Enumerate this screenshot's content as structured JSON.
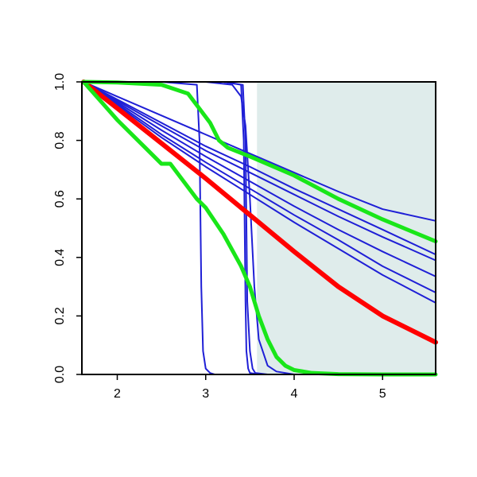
{
  "chart_data": {
    "type": "line",
    "title": "",
    "xlabel": "",
    "ylabel": "",
    "xlim": [
      1.6,
      5.6
    ],
    "ylim": [
      0,
      1
    ],
    "x_ticks": [
      2,
      3,
      4,
      5
    ],
    "x_tick_labels": [
      "2",
      "3",
      "4",
      "5"
    ],
    "y_ticks": [
      0,
      0.2,
      0.4,
      0.6,
      0.8,
      1
    ],
    "y_tick_labels": [
      "0.0",
      "0.2",
      "0.4",
      "0.6",
      "0.8",
      "1.0"
    ],
    "grid": false,
    "shaded_region": {
      "x_start": 3.58,
      "x_end": 5.6,
      "color": "#dfeceb"
    },
    "colors": {
      "blue": "#1f1fd6",
      "red": "#ff0000",
      "green": "#19e619",
      "axis": "#000000"
    },
    "series": [
      {
        "color": "blue",
        "width": 2,
        "x": [
          1.62,
          2.0,
          2.5,
          3.0,
          3.5,
          4.0,
          4.5,
          5.0,
          5.6
        ],
        "y": [
          1.0,
          0.95,
          0.885,
          0.82,
          0.755,
          0.69,
          0.625,
          0.565,
          0.525
        ]
      },
      {
        "color": "blue",
        "width": 2,
        "x": [
          1.62,
          2.0,
          2.5,
          3.0,
          3.5,
          4.0,
          4.5,
          5.0,
          5.6
        ],
        "y": [
          1.0,
          0.94,
          0.86,
          0.78,
          0.71,
          0.635,
          0.565,
          0.495,
          0.41
        ]
      },
      {
        "color": "blue",
        "width": 2,
        "x": [
          1.62,
          2.0,
          2.5,
          3.0,
          3.5,
          4.0,
          4.5,
          5.0,
          5.6
        ],
        "y": [
          1.0,
          0.935,
          0.85,
          0.765,
          0.69,
          0.615,
          0.54,
          0.47,
          0.39
        ]
      },
      {
        "color": "blue",
        "width": 2,
        "x": [
          1.62,
          2.0,
          2.5,
          3.0,
          3.5,
          4.0,
          4.5,
          5.0,
          5.6
        ],
        "y": [
          1.0,
          0.93,
          0.835,
          0.745,
          0.66,
          0.575,
          0.495,
          0.42,
          0.335
        ]
      },
      {
        "color": "blue",
        "width": 2,
        "x": [
          1.62,
          2.0,
          2.5,
          3.0,
          3.5,
          4.0,
          4.5,
          5.0,
          5.6
        ],
        "y": [
          1.0,
          0.925,
          0.82,
          0.725,
          0.635,
          0.545,
          0.46,
          0.37,
          0.28
        ]
      },
      {
        "color": "blue",
        "width": 2,
        "x": [
          1.62,
          2.0,
          2.5,
          3.0,
          3.5,
          4.0,
          4.5,
          5.0,
          5.6
        ],
        "y": [
          1.0,
          0.92,
          0.81,
          0.71,
          0.615,
          0.52,
          0.43,
          0.34,
          0.245
        ]
      },
      {
        "color": "blue",
        "width": 2,
        "x": [
          1.62,
          2.5,
          2.9,
          2.93,
          2.95,
          2.97,
          3.0,
          3.05,
          3.1
        ],
        "y": [
          1.0,
          1.0,
          0.99,
          0.8,
          0.3,
          0.08,
          0.02,
          0.005,
          0.0
        ]
      },
      {
        "color": "blue",
        "width": 2,
        "x": [
          1.62,
          3.2,
          3.4,
          3.43,
          3.45,
          3.46,
          3.48,
          3.5,
          3.6
        ],
        "y": [
          1.0,
          1.0,
          0.99,
          0.8,
          0.25,
          0.08,
          0.02,
          0.005,
          0.0
        ]
      },
      {
        "color": "blue",
        "width": 2,
        "x": [
          1.62,
          3.2,
          3.42,
          3.45,
          3.47,
          3.5,
          3.53,
          3.56,
          3.7
        ],
        "y": [
          1.0,
          1.0,
          0.99,
          0.8,
          0.25,
          0.08,
          0.02,
          0.005,
          0.0
        ]
      },
      {
        "color": "blue",
        "width": 2,
        "x": [
          1.62,
          3.0,
          3.3,
          3.4,
          3.45,
          3.5,
          3.55,
          3.6,
          3.7,
          3.8,
          4.0
        ],
        "y": [
          1.0,
          1.0,
          0.99,
          0.95,
          0.85,
          0.6,
          0.3,
          0.12,
          0.03,
          0.01,
          0.0
        ]
      },
      {
        "color": "red",
        "width": 6,
        "x": [
          1.62,
          2.0,
          2.5,
          3.0,
          3.5,
          4.0,
          4.5,
          5.0,
          5.6
        ],
        "y": [
          1.0,
          0.91,
          0.79,
          0.67,
          0.545,
          0.42,
          0.3,
          0.2,
          0.11
        ]
      },
      {
        "color": "green",
        "width": 5,
        "x": [
          1.62,
          2.0,
          2.5,
          2.8,
          2.95,
          3.05,
          3.15,
          3.25,
          3.5,
          4.0,
          4.5,
          5.0,
          5.6
        ],
        "y": [
          1.0,
          0.998,
          0.99,
          0.96,
          0.9,
          0.86,
          0.8,
          0.775,
          0.745,
          0.68,
          0.6,
          0.53,
          0.455
        ]
      },
      {
        "color": "green",
        "width": 5,
        "x": [
          1.62,
          2.0,
          2.3,
          2.5,
          2.6,
          2.7,
          2.9,
          3.0,
          3.2,
          3.4,
          3.5,
          3.6,
          3.7,
          3.8,
          3.9,
          4.0,
          4.2,
          4.5,
          5.0,
          5.6
        ],
        "y": [
          1.0,
          0.87,
          0.78,
          0.72,
          0.72,
          0.68,
          0.6,
          0.57,
          0.48,
          0.37,
          0.3,
          0.2,
          0.12,
          0.06,
          0.03,
          0.015,
          0.005,
          0.001,
          0.0,
          0.0
        ]
      }
    ]
  }
}
